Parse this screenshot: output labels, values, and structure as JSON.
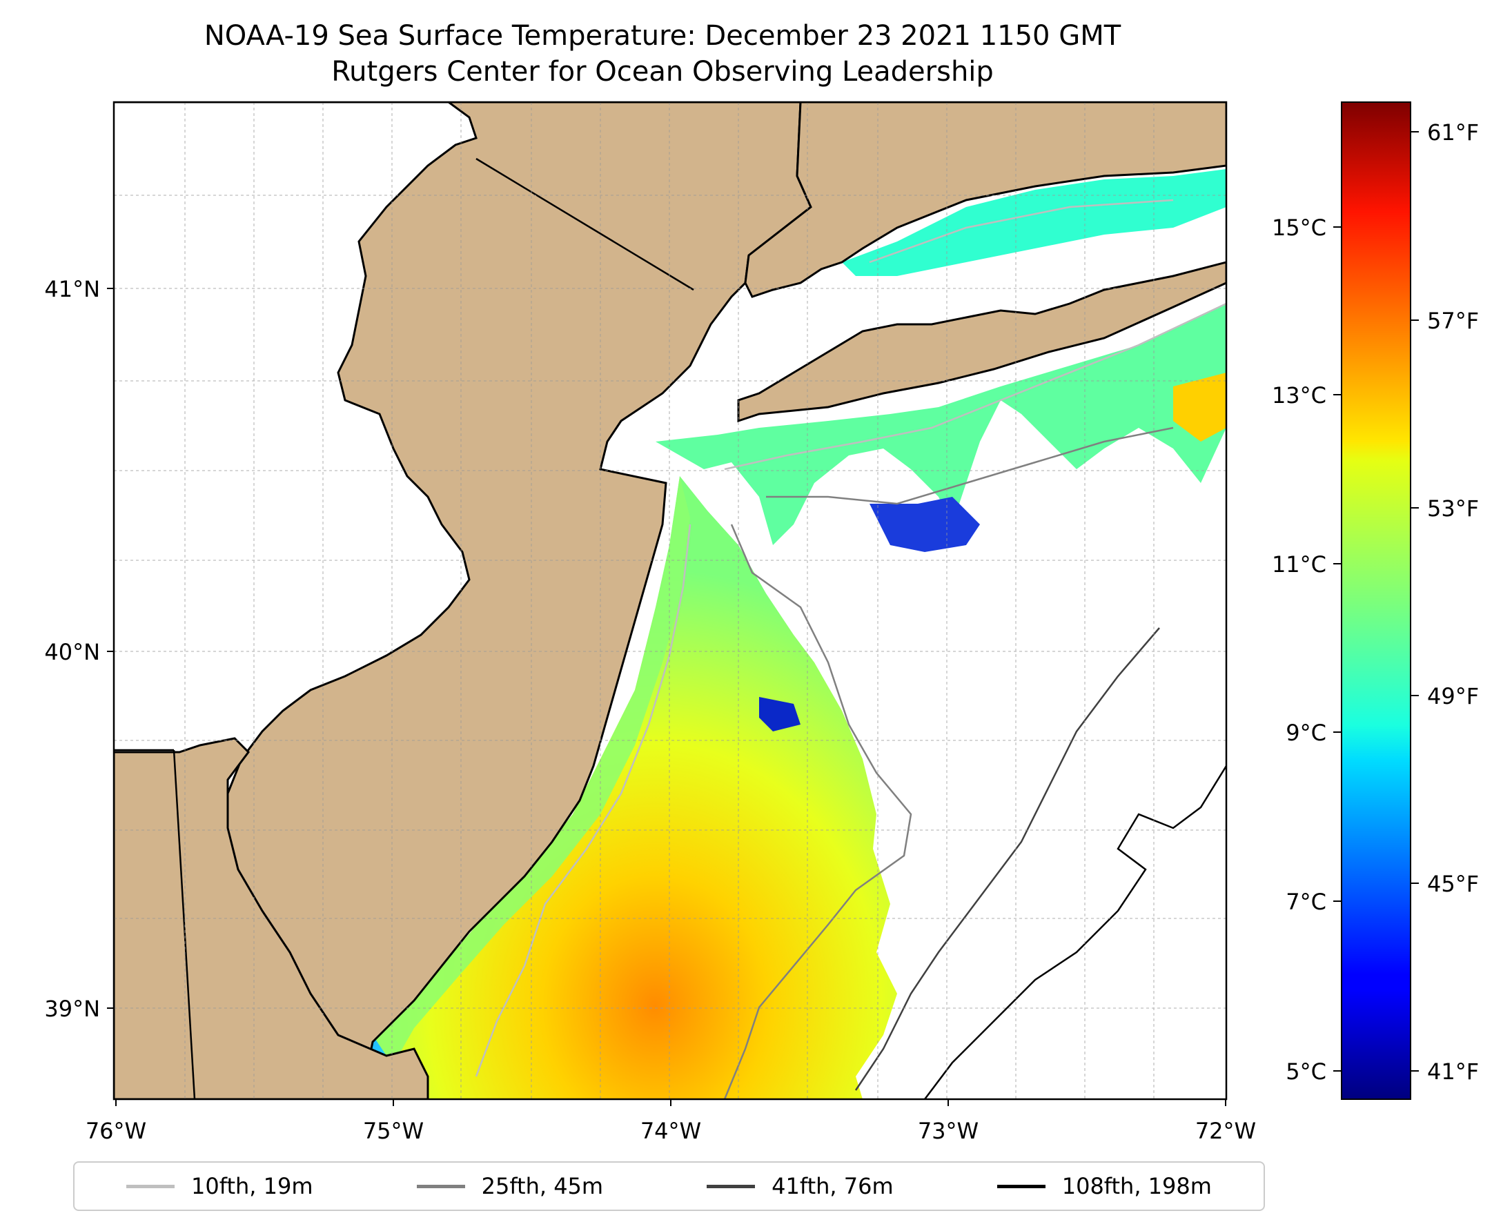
{
  "title": {
    "line1": "NOAA-19 Sea Surface Temperature: December 23 2021 1150 GMT",
    "line2": "Rutgers Center for Ocean Observing Leadership"
  },
  "map": {
    "lon_range": [
      -76,
      -72
    ],
    "lat_range": [
      38.75,
      41.55
    ],
    "x_ticks": [
      "76°W",
      "75°W",
      "74°W",
      "73°W",
      "72°W"
    ],
    "y_ticks": [
      "41°N",
      "40°N",
      "39°N"
    ],
    "land_color": "#d2b48c",
    "no_data_color": "#ffffff",
    "gridlines": true
  },
  "colorbar": {
    "colormap": "jet",
    "range_celsius": [
      4.7,
      16.6
    ],
    "celsius_ticks": [
      "15°C",
      "13°C",
      "11°C",
      "9°C",
      "7°C",
      "5°C"
    ],
    "fahrenheit_ticks": [
      "61°F",
      "57°F",
      "53°F",
      "49°F",
      "45°F",
      "41°F"
    ]
  },
  "legend": {
    "items": [
      {
        "label": "10fth, 19m",
        "color": "#bfbfbf"
      },
      {
        "label": "25fth, 45m",
        "color": "#808080"
      },
      {
        "label": "41fth, 76m",
        "color": "#404040"
      },
      {
        "label": "108fth, 198m",
        "color": "#000000"
      }
    ]
  }
}
